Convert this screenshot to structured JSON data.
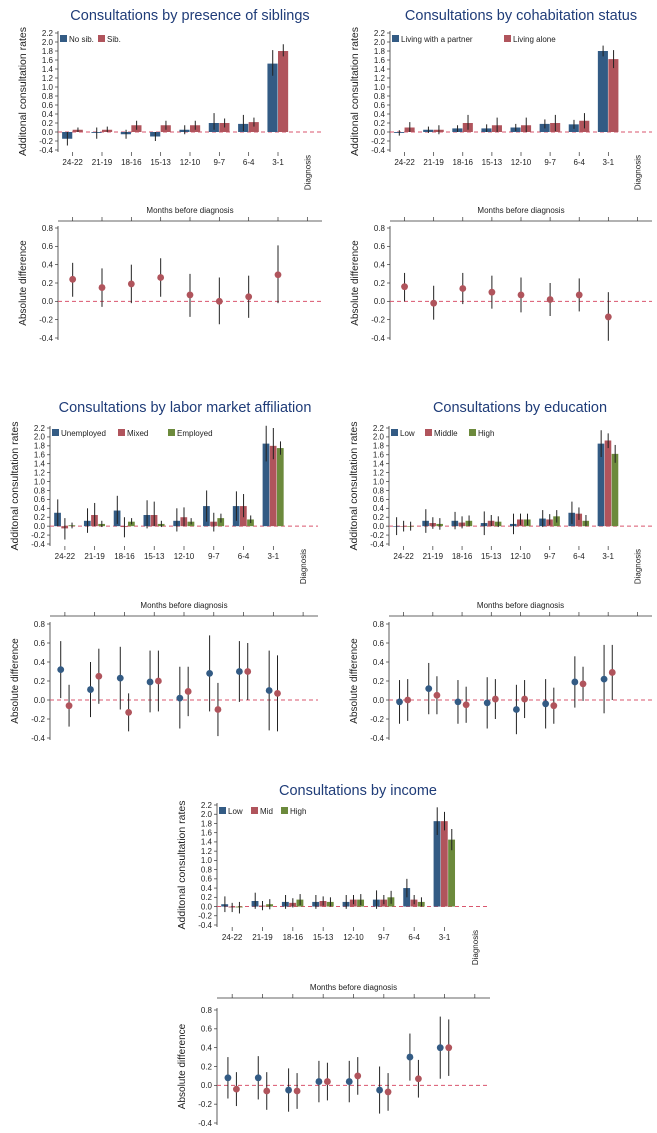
{
  "figure": {
    "xlabel_shared": "Months before diagnosis",
    "categories": [
      "24-22",
      "21-19",
      "18-16",
      "15-13",
      "12-10",
      "9-7",
      "6-4",
      "3-1",
      "Diagnosis"
    ],
    "colors": {
      "blue": "#335b84",
      "red": "#b0545c",
      "green": "#6c8a3c",
      "ref_line": "#d9566e",
      "ci": "#222222"
    }
  },
  "chart_data": [
    {
      "type": "bar",
      "title": "Consultations by presence of siblings",
      "ylabel": "Additonal consultation rates",
      "ylim": [
        -0.4,
        2.2
      ],
      "series": [
        {
          "name": "No sib.",
          "color": "#335b84",
          "values": [
            -0.15,
            -0.02,
            -0.05,
            -0.1,
            0.05,
            0.2,
            0.18,
            1.52
          ],
          "ci": [
            [
              -0.3,
              0
            ],
            [
              -0.15,
              0.1
            ],
            [
              -0.15,
              0.05
            ],
            [
              -0.2,
              0
            ],
            [
              -0.05,
              0.15
            ],
            [
              0.05,
              0.42
            ],
            [
              0.02,
              0.38
            ],
            [
              1.25,
              1.82
            ]
          ]
        },
        {
          "name": "Sib.",
          "color": "#b0545c",
          "values": [
            0.05,
            0.05,
            0.15,
            0.15,
            0.15,
            0.2,
            0.22,
            1.8
          ],
          "ci": [
            [
              0,
              0.1
            ],
            [
              0,
              0.12
            ],
            [
              0.05,
              0.25
            ],
            [
              0.05,
              0.25
            ],
            [
              0.05,
              0.25
            ],
            [
              0.1,
              0.3
            ],
            [
              0.12,
              0.32
            ],
            [
              1.68,
              1.95
            ]
          ]
        }
      ]
    },
    {
      "type": "scatter",
      "ylabel": "Absolute difference",
      "ylim": [
        -0.4,
        0.8
      ],
      "series": [
        {
          "color": "#b0545c",
          "values": [
            0.24,
            0.15,
            0.19,
            0.26,
            0.07,
            0.0,
            0.05,
            0.29
          ],
          "ci": [
            [
              0.05,
              0.42
            ],
            [
              -0.06,
              0.36
            ],
            [
              -0.02,
              0.4
            ],
            [
              0.05,
              0.47
            ],
            [
              -0.17,
              0.3
            ],
            [
              -0.25,
              0.26
            ],
            [
              -0.18,
              0.28
            ],
            [
              -0.02,
              0.61
            ]
          ]
        }
      ]
    },
    {
      "type": "bar",
      "title": "Consultations by cohabitation status",
      "ylabel": "Additonal consultation rates",
      "ylim": [
        -0.4,
        2.2
      ],
      "series": [
        {
          "name": "Living with a partner",
          "color": "#335b84",
          "values": [
            -0.02,
            0.05,
            0.08,
            0.08,
            0.1,
            0.18,
            0.17,
            1.8
          ],
          "ci": [
            [
              -0.08,
              0.04
            ],
            [
              -0.02,
              0.12
            ],
            [
              0,
              0.15
            ],
            [
              0,
              0.17
            ],
            [
              0.02,
              0.18
            ],
            [
              0.08,
              0.28
            ],
            [
              0.07,
              0.27
            ],
            [
              1.68,
              1.92
            ]
          ]
        },
        {
          "name": "Living alone",
          "color": "#b0545c",
          "values": [
            0.1,
            0.05,
            0.2,
            0.15,
            0.15,
            0.2,
            0.25,
            1.62
          ],
          "ci": [
            [
              0,
              0.22
            ],
            [
              -0.05,
              0.15
            ],
            [
              0.05,
              0.38
            ],
            [
              0,
              0.32
            ],
            [
              0,
              0.32
            ],
            [
              0.02,
              0.38
            ],
            [
              0.08,
              0.42
            ],
            [
              1.42,
              1.82
            ]
          ]
        }
      ]
    },
    {
      "type": "scatter",
      "ylabel": "Absolute difference",
      "ylim": [
        -0.4,
        0.8
      ],
      "series": [
        {
          "color": "#b0545c",
          "values": [
            0.16,
            -0.02,
            0.14,
            0.1,
            0.07,
            0.02,
            0.07,
            -0.17
          ],
          "ci": [
            [
              0.0,
              0.31
            ],
            [
              -0.2,
              0.17
            ],
            [
              -0.03,
              0.31
            ],
            [
              -0.08,
              0.28
            ],
            [
              -0.12,
              0.26
            ],
            [
              -0.16,
              0.2
            ],
            [
              -0.11,
              0.25
            ],
            [
              -0.43,
              0.1
            ]
          ]
        }
      ]
    },
    {
      "type": "bar",
      "title": "Consultations by labor market affiliation",
      "ylabel": "Additonal consultation rates",
      "ylim": [
        -0.4,
        2.2
      ],
      "series": [
        {
          "name": "Unemployed",
          "color": "#335b84",
          "values": [
            0.3,
            0.12,
            0.35,
            0.25,
            0.12,
            0.45,
            0.45,
            1.85
          ],
          "ci": [
            [
              0,
              0.6
            ],
            [
              -0.15,
              0.4
            ],
            [
              0.05,
              0.68
            ],
            [
              -0.05,
              0.58
            ],
            [
              -0.12,
              0.4
            ],
            [
              0.1,
              0.8
            ],
            [
              0.12,
              0.78
            ],
            [
              1.45,
              2.25
            ]
          ]
        },
        {
          "name": "Mixed",
          "color": "#b0545c",
          "values": [
            -0.05,
            0.25,
            -0.02,
            0.25,
            0.2,
            0.1,
            0.45,
            1.8
          ],
          "ci": [
            [
              -0.3,
              0.18
            ],
            [
              0,
              0.52
            ],
            [
              -0.25,
              0.2
            ],
            [
              0,
              0.55
            ],
            [
              0,
              0.42
            ],
            [
              -0.12,
              0.3
            ],
            [
              0.2,
              0.72
            ],
            [
              1.5,
              2.2
            ]
          ]
        },
        {
          "name": "Employed",
          "color": "#6c8a3c",
          "values": [
            0.02,
            0.05,
            0.1,
            0.05,
            0.1,
            0.18,
            0.15,
            1.75
          ],
          "ci": [
            [
              -0.05,
              0.08
            ],
            [
              -0.02,
              0.12
            ],
            [
              0.04,
              0.18
            ],
            [
              -0.02,
              0.12
            ],
            [
              0.04,
              0.18
            ],
            [
              0.08,
              0.28
            ],
            [
              0.07,
              0.24
            ],
            [
              1.6,
              1.9
            ]
          ]
        }
      ]
    },
    {
      "type": "scatter",
      "ylabel": "Absolute difference",
      "ylim": [
        -0.4,
        0.8
      ],
      "series": [
        {
          "color": "#335b84",
          "values": [
            0.32,
            0.11,
            0.23,
            0.19,
            0.02,
            0.28,
            0.3,
            0.1
          ],
          "ci": [
            [
              0.02,
              0.62
            ],
            [
              -0.18,
              0.4
            ],
            [
              -0.1,
              0.56
            ],
            [
              -0.13,
              0.52
            ],
            [
              -0.3,
              0.35
            ],
            [
              -0.12,
              0.68
            ],
            [
              -0.02,
              0.62
            ],
            [
              -0.32,
              0.52
            ]
          ]
        },
        {
          "color": "#b0545c",
          "values": [
            -0.06,
            0.25,
            -0.13,
            0.2,
            0.09,
            -0.1,
            0.3,
            0.07
          ],
          "ci": [
            [
              -0.28,
              0.16
            ],
            [
              -0.04,
              0.54
            ],
            [
              -0.33,
              0.07
            ],
            [
              -0.12,
              0.52
            ],
            [
              -0.17,
              0.35
            ],
            [
              -0.38,
              0.18
            ],
            [
              0.0,
              0.6
            ],
            [
              -0.33,
              0.47
            ]
          ]
        }
      ]
    },
    {
      "type": "bar",
      "title": "Consultations by education",
      "ylabel": "Additonal consultation rates",
      "ylim": [
        -0.4,
        2.2
      ],
      "series": [
        {
          "name": "Low",
          "color": "#335b84",
          "values": [
            0.0,
            0.12,
            0.12,
            0.07,
            0.05,
            0.17,
            0.3,
            1.85
          ],
          "ci": [
            [
              -0.2,
              0.2
            ],
            [
              -0.15,
              0.38
            ],
            [
              -0.07,
              0.32
            ],
            [
              -0.2,
              0.33
            ],
            [
              -0.18,
              0.28
            ],
            [
              -0.02,
              0.36
            ],
            [
              0.05,
              0.55
            ],
            [
              1.55,
              2.15
            ]
          ]
        },
        {
          "name": "Middle",
          "color": "#b0545c",
          "values": [
            0.0,
            0.07,
            0.08,
            0.12,
            0.15,
            0.15,
            0.28,
            1.92
          ],
          "ci": [
            [
              -0.12,
              0.12
            ],
            [
              -0.06,
              0.2
            ],
            [
              -0.05,
              0.22
            ],
            [
              0,
              0.25
            ],
            [
              0.03,
              0.28
            ],
            [
              0.03,
              0.27
            ],
            [
              0.14,
              0.42
            ],
            [
              1.75,
              2.08
            ]
          ]
        },
        {
          "name": "High",
          "color": "#6c8a3c",
          "values": [
            0.0,
            0.05,
            0.12,
            0.1,
            0.15,
            0.22,
            0.12,
            1.62
          ],
          "ci": [
            [
              -0.1,
              0.1
            ],
            [
              -0.08,
              0.18
            ],
            [
              0,
              0.24
            ],
            [
              -0.02,
              0.22
            ],
            [
              0.02,
              0.28
            ],
            [
              0.08,
              0.36
            ],
            [
              0,
              0.25
            ],
            [
              1.42,
              1.82
            ]
          ]
        }
      ]
    },
    {
      "type": "scatter",
      "ylabel": "Absolute difference",
      "ylim": [
        -0.4,
        0.8
      ],
      "series": [
        {
          "color": "#335b84",
          "values": [
            -0.02,
            0.12,
            -0.02,
            -0.03,
            -0.1,
            -0.04,
            0.19,
            0.22
          ],
          "ci": [
            [
              -0.25,
              0.21
            ],
            [
              -0.15,
              0.39
            ],
            [
              -0.25,
              0.21
            ],
            [
              -0.3,
              0.24
            ],
            [
              -0.36,
              0.16
            ],
            [
              -0.3,
              0.22
            ],
            [
              -0.08,
              0.46
            ],
            [
              -0.14,
              0.58
            ]
          ]
        },
        {
          "color": "#b0545c",
          "values": [
            0.0,
            0.05,
            -0.05,
            0.01,
            0.01,
            -0.06,
            0.17,
            0.29
          ],
          "ci": [
            [
              -0.22,
              0.22
            ],
            [
              -0.15,
              0.25
            ],
            [
              -0.24,
              0.14
            ],
            [
              -0.2,
              0.22
            ],
            [
              -0.19,
              0.21
            ],
            [
              -0.25,
              0.13
            ],
            [
              -0.01,
              0.35
            ],
            [
              0.0,
              0.58
            ]
          ]
        }
      ]
    },
    {
      "type": "bar",
      "title": "Consultations by income",
      "ylabel": "Additonal consultation rates",
      "ylim": [
        -0.4,
        2.2
      ],
      "series": [
        {
          "name": "Low",
          "color": "#335b84",
          "values": [
            0.05,
            0.12,
            0.1,
            0.1,
            0.1,
            0.15,
            0.4,
            1.85
          ],
          "ci": [
            [
              -0.12,
              0.22
            ],
            [
              -0.05,
              0.3
            ],
            [
              -0.05,
              0.25
            ],
            [
              -0.05,
              0.25
            ],
            [
              -0.05,
              0.25
            ],
            [
              -0.05,
              0.35
            ],
            [
              0.2,
              0.6
            ],
            [
              1.55,
              2.15
            ]
          ]
        },
        {
          "name": "Mid",
          "color": "#b0545c",
          "values": [
            -0.02,
            0.02,
            0.08,
            0.12,
            0.15,
            0.15,
            0.15,
            1.85
          ],
          "ci": [
            [
              -0.12,
              0.08
            ],
            [
              -0.08,
              0.12
            ],
            [
              -0.02,
              0.18
            ],
            [
              0.02,
              0.22
            ],
            [
              0.05,
              0.25
            ],
            [
              0.05,
              0.25
            ],
            [
              0.05,
              0.25
            ],
            [
              1.65,
              2.05
            ]
          ]
        },
        {
          "name": "High",
          "color": "#6c8a3c",
          "values": [
            -0.02,
            0.05,
            0.15,
            0.1,
            0.15,
            0.2,
            0.1,
            1.45
          ],
          "ci": [
            [
              -0.15,
              0.1
            ],
            [
              -0.06,
              0.16
            ],
            [
              0.03,
              0.27
            ],
            [
              0,
              0.2
            ],
            [
              0.03,
              0.27
            ],
            [
              0.06,
              0.34
            ],
            [
              0,
              0.2
            ],
            [
              1.22,
              1.68
            ]
          ]
        }
      ]
    },
    {
      "type": "scatter",
      "ylabel": "Absolute difference",
      "ylim": [
        -0.4,
        0.8
      ],
      "series": [
        {
          "color": "#335b84",
          "values": [
            0.08,
            0.08,
            -0.05,
            0.04,
            0.04,
            -0.05,
            0.3,
            0.4
          ],
          "ci": [
            [
              -0.14,
              0.3
            ],
            [
              -0.15,
              0.31
            ],
            [
              -0.28,
              0.18
            ],
            [
              -0.18,
              0.26
            ],
            [
              -0.18,
              0.26
            ],
            [
              -0.3,
              0.2
            ],
            [
              0.05,
              0.55
            ],
            [
              0.07,
              0.73
            ]
          ]
        },
        {
          "color": "#b0545c",
          "values": [
            -0.04,
            -0.06,
            -0.06,
            0.04,
            0.1,
            -0.07,
            0.07,
            0.4
          ],
          "ci": [
            [
              -0.22,
              0.14
            ],
            [
              -0.26,
              0.14
            ],
            [
              -0.25,
              0.13
            ],
            [
              -0.16,
              0.24
            ],
            [
              -0.1,
              0.3
            ],
            [
              -0.27,
              0.13
            ],
            [
              -0.13,
              0.27
            ],
            [
              0.1,
              0.7
            ]
          ]
        }
      ]
    }
  ]
}
